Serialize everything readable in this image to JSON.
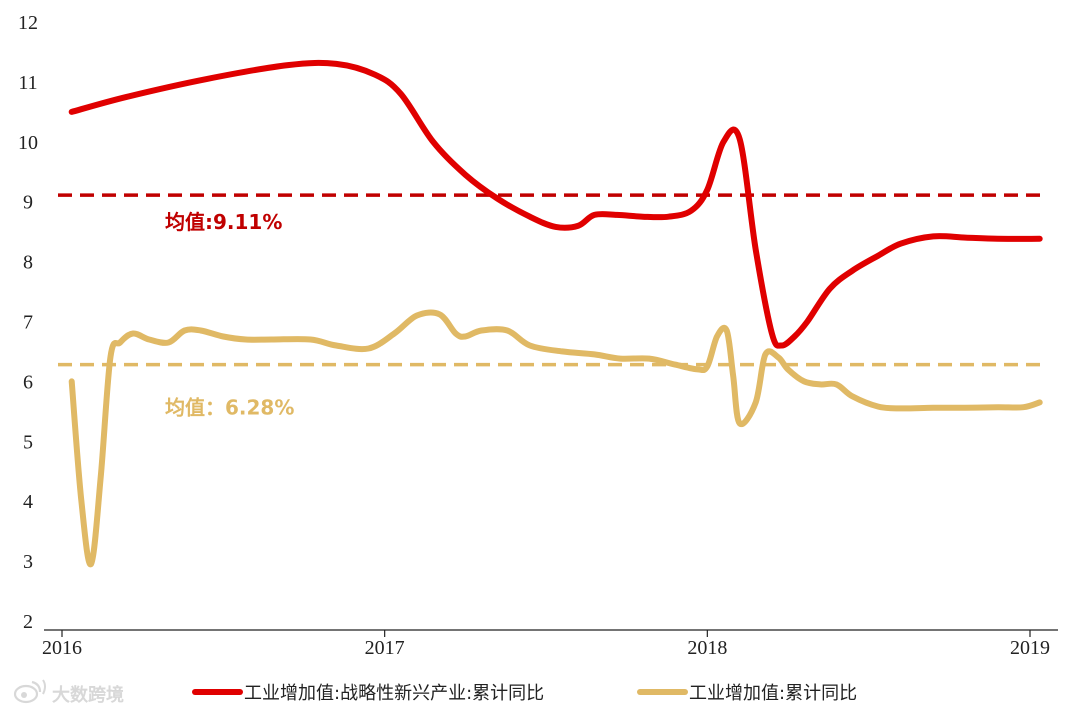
{
  "chart_data": {
    "type": "line",
    "title": "",
    "xlabel": "",
    "ylabel": "",
    "x_ticks": [
      "2016",
      "2017",
      "2018",
      "2019"
    ],
    "y_ticks": [
      "2",
      "3",
      "4",
      "5",
      "6",
      "7",
      "8",
      "9",
      "10",
      "11",
      "12"
    ],
    "ylim": [
      2,
      12
    ],
    "xlim": [
      2016.0,
      2019.0
    ],
    "grid": false,
    "legend_position": "bottom",
    "series": [
      {
        "name": "工业增加值:战略性新兴产业:累计同比",
        "color": "#e00000",
        "x": [
          2016.03,
          2016.2,
          2016.45,
          2016.7,
          2016.85,
          2016.97,
          2017.05,
          2017.15,
          2017.25,
          2017.35,
          2017.45,
          2017.53,
          2017.6,
          2017.65,
          2017.72,
          2017.8,
          2017.88,
          2017.95,
          2018.0,
          2018.05,
          2018.1,
          2018.15,
          2018.2,
          2018.23,
          2018.27,
          2018.31,
          2018.38,
          2018.45,
          2018.53,
          2018.6,
          2018.7,
          2018.8,
          2018.9,
          2019.03
        ],
        "values": [
          10.5,
          10.75,
          11.05,
          11.28,
          11.3,
          11.12,
          10.8,
          10.0,
          9.45,
          9.05,
          8.75,
          8.58,
          8.6,
          8.78,
          8.78,
          8.75,
          8.75,
          8.85,
          9.2,
          10.0,
          10.05,
          8.2,
          6.8,
          6.6,
          6.75,
          7.0,
          7.55,
          7.85,
          8.1,
          8.3,
          8.42,
          8.4,
          8.38,
          8.38
        ]
      },
      {
        "name": "工业增加值:累计同比",
        "color": "#e0b965",
        "x": [
          2016.03,
          2016.06,
          2016.09,
          2016.12,
          2016.15,
          2016.18,
          2016.22,
          2016.27,
          2016.33,
          2016.38,
          2016.43,
          2016.5,
          2016.57,
          2016.65,
          2016.77,
          2016.85,
          2016.95,
          2017.03,
          2017.1,
          2017.17,
          2017.22,
          2017.25,
          2017.3,
          2017.38,
          2017.45,
          2017.55,
          2017.65,
          2017.73,
          2017.82,
          2017.9,
          2017.97,
          2018.0,
          2018.03,
          2018.06,
          2018.08,
          2018.1,
          2018.15,
          2018.18,
          2018.22,
          2018.25,
          2018.3,
          2018.35,
          2018.4,
          2018.45,
          2018.53,
          2018.6,
          2018.7,
          2018.8,
          2018.9,
          2018.98,
          2019.03
        ],
        "values": [
          6.0,
          4.0,
          2.95,
          4.4,
          6.4,
          6.65,
          6.8,
          6.7,
          6.65,
          6.85,
          6.85,
          6.75,
          6.7,
          6.7,
          6.7,
          6.6,
          6.55,
          6.8,
          7.1,
          7.12,
          6.8,
          6.75,
          6.85,
          6.85,
          6.6,
          6.5,
          6.45,
          6.38,
          6.38,
          6.28,
          6.2,
          6.25,
          6.75,
          6.85,
          6.1,
          5.3,
          5.65,
          6.45,
          6.4,
          6.2,
          6.0,
          5.95,
          5.95,
          5.75,
          5.58,
          5.55,
          5.56,
          5.56,
          5.57,
          5.57,
          5.65
        ]
      }
    ],
    "reference_lines": [
      {
        "label": "均值:9.11%",
        "value": 9.11,
        "color": "#c00000",
        "style": "dashed"
      },
      {
        "label": "均值：6.28%",
        "value": 6.28,
        "color": "#e0b965",
        "style": "dashed"
      }
    ]
  },
  "watermark": {
    "text": "大数跨境",
    "icon": "weibo-logo-icon"
  }
}
